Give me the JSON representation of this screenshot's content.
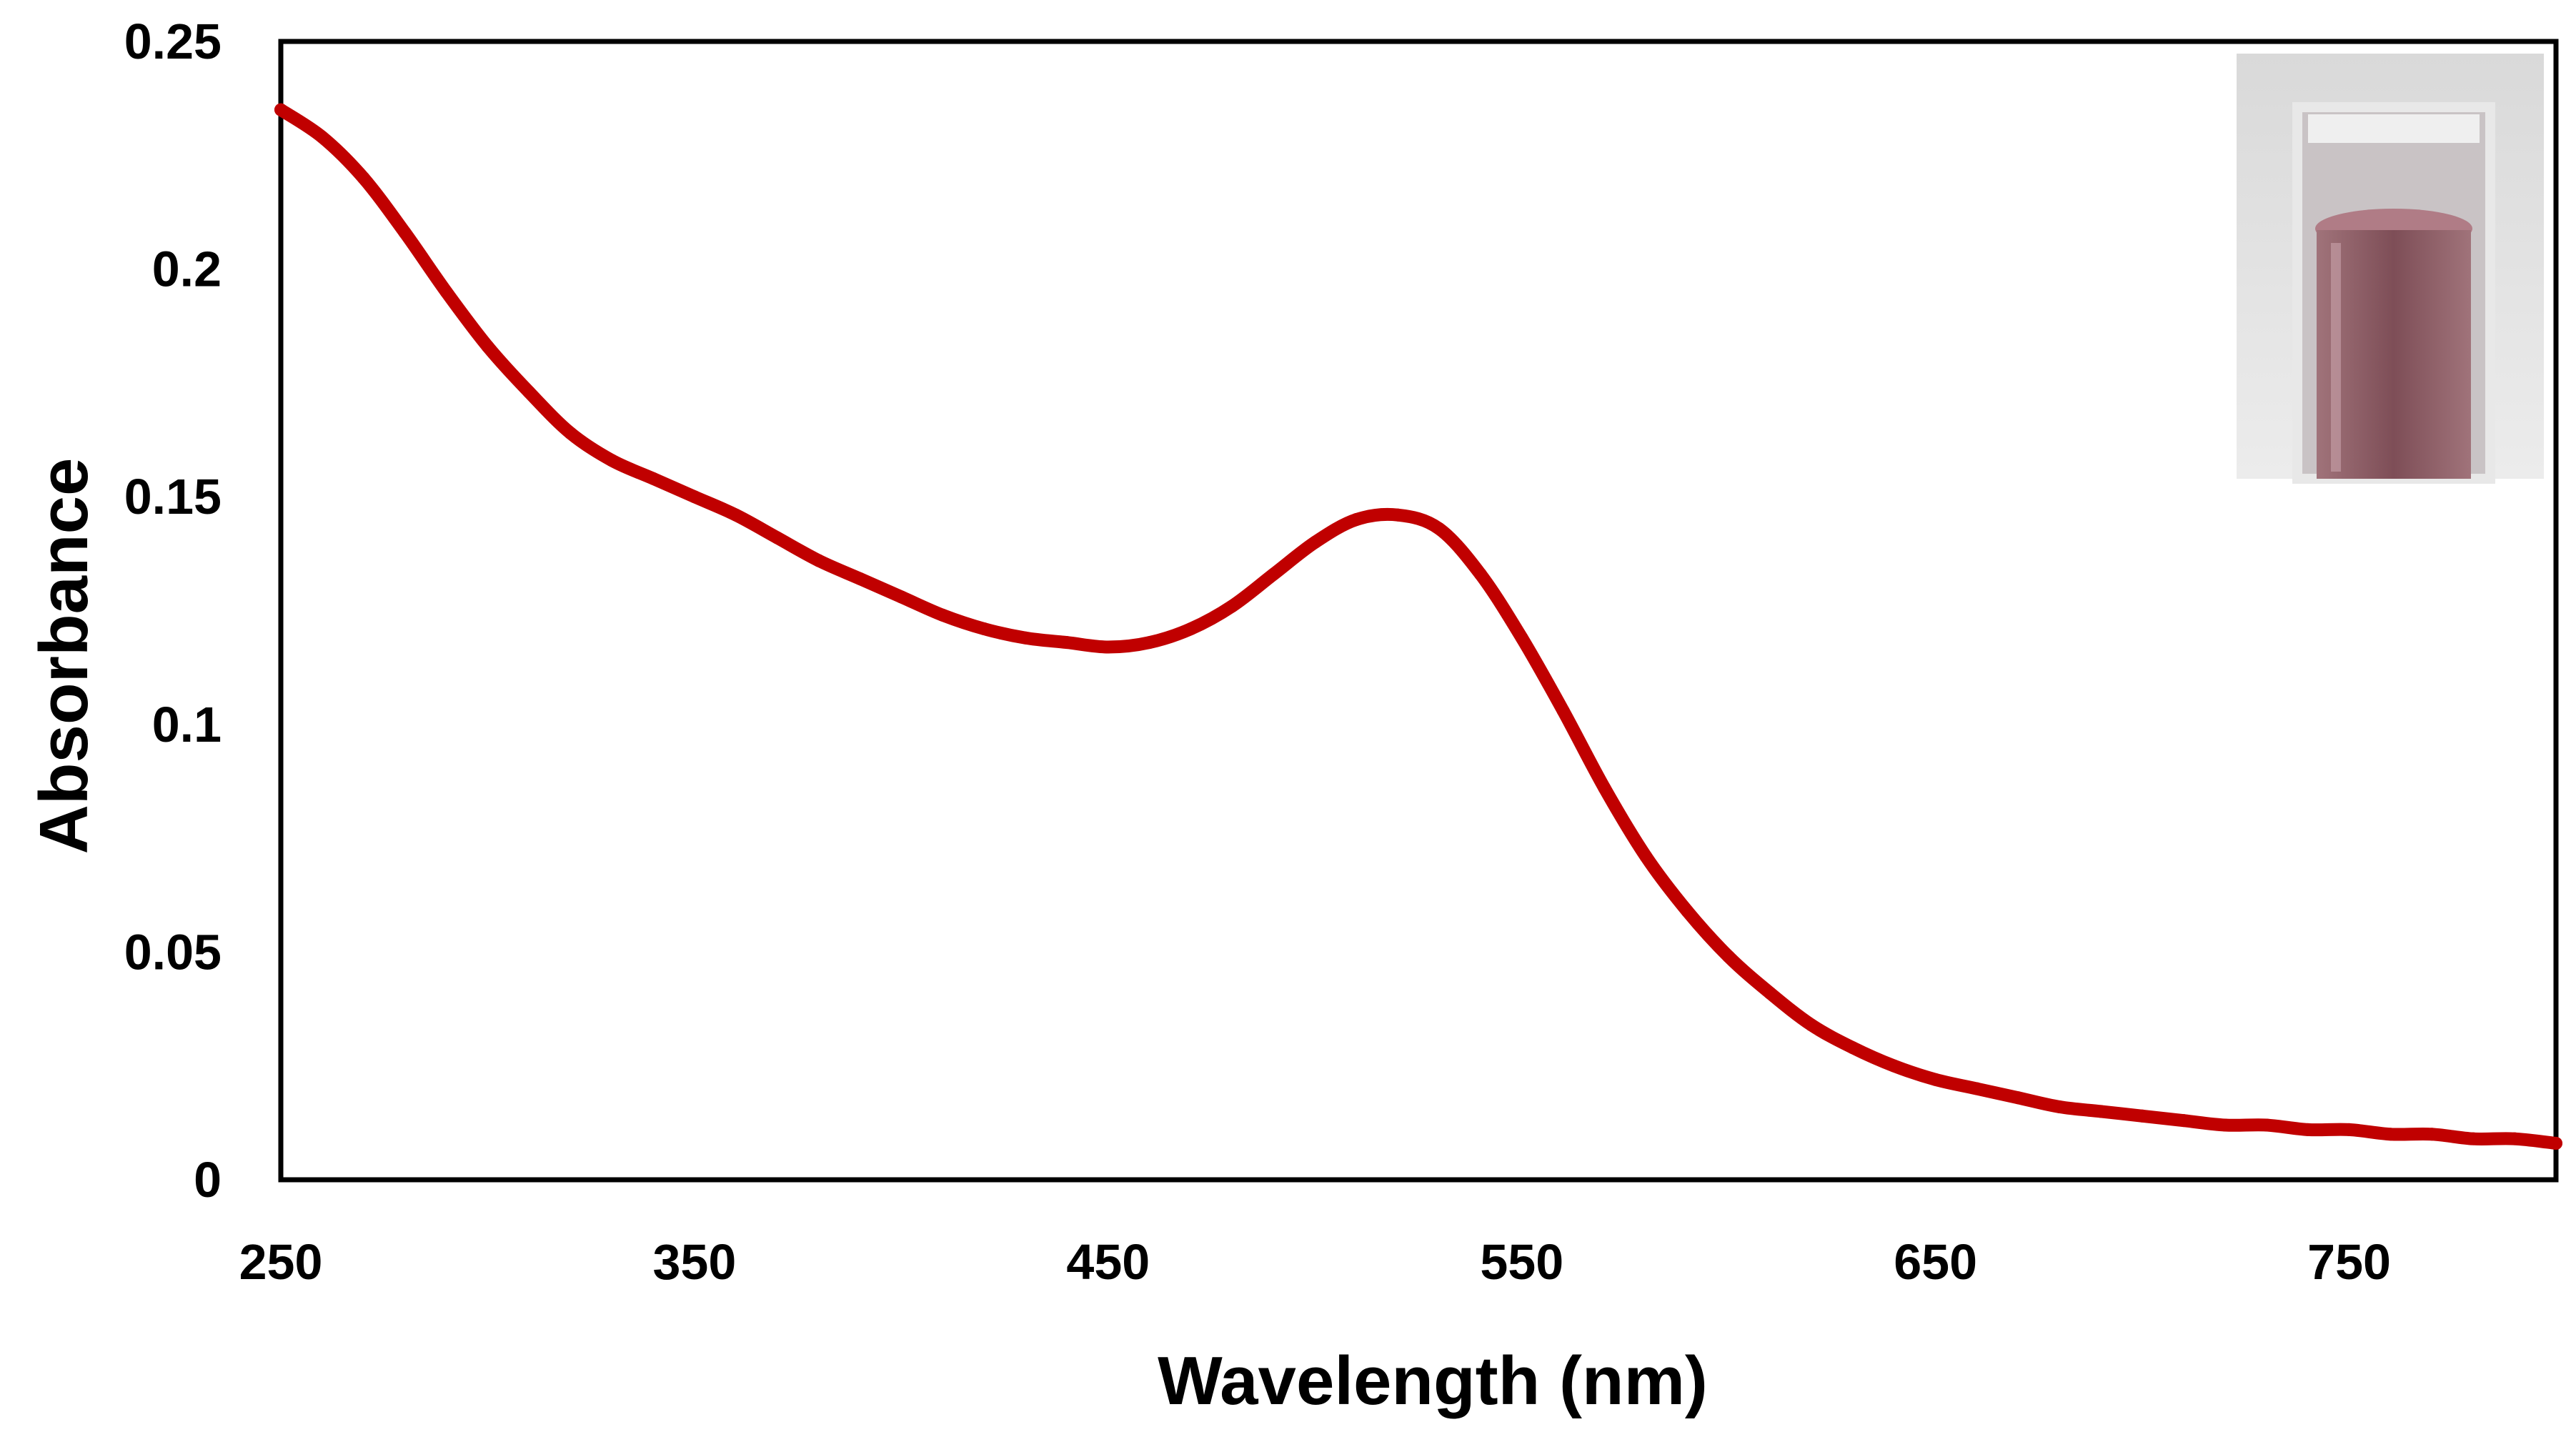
{
  "colors": {
    "line": "#c00000",
    "axis": "#000000",
    "background": "#ffffff"
  },
  "chart_data": {
    "type": "line",
    "title": "",
    "xlabel": "Wavelength (nm)",
    "ylabel": "Absorbance",
    "xlim": [
      250,
      800
    ],
    "ylim": [
      0,
      0.25
    ],
    "xticks": [
      250,
      350,
      450,
      550,
      650,
      750
    ],
    "yticks": [
      0,
      0.05,
      0.1,
      0.15,
      0.2,
      0.25
    ],
    "xtick_labels": [
      "250",
      "350",
      "450",
      "550",
      "650",
      "750"
    ],
    "ytick_labels": [
      "0",
      "0.05",
      "0.1",
      "0.15",
      "0.2",
      "0.25"
    ],
    "grid": false,
    "legend": "none",
    "inset": "photo of a cuvette with a reddish-pink solution (top-right)",
    "series": [
      {
        "name": "Absorbance",
        "x": [
          250,
          260,
          270,
          280,
          290,
          300,
          310,
          320,
          330,
          340,
          350,
          360,
          370,
          380,
          390,
          400,
          410,
          420,
          430,
          440,
          450,
          460,
          470,
          480,
          490,
          500,
          510,
          520,
          530,
          540,
          550,
          560,
          570,
          580,
          590,
          600,
          610,
          620,
          630,
          640,
          650,
          660,
          670,
          680,
          690,
          700,
          710,
          720,
          730,
          740,
          750,
          760,
          770,
          780,
          790,
          800
        ],
        "values": [
          0.235,
          0.229,
          0.22,
          0.208,
          0.195,
          0.183,
          0.173,
          0.164,
          0.158,
          0.154,
          0.15,
          0.146,
          0.141,
          0.136,
          0.132,
          0.128,
          0.124,
          0.121,
          0.119,
          0.118,
          0.117,
          0.118,
          0.121,
          0.126,
          0.133,
          0.14,
          0.145,
          0.146,
          0.143,
          0.133,
          0.119,
          0.103,
          0.086,
          0.071,
          0.059,
          0.049,
          0.041,
          0.034,
          0.029,
          0.025,
          0.022,
          0.02,
          0.018,
          0.016,
          0.015,
          0.014,
          0.013,
          0.012,
          0.012,
          0.011,
          0.011,
          0.01,
          0.01,
          0.009,
          0.009,
          0.008
        ]
      }
    ]
  }
}
